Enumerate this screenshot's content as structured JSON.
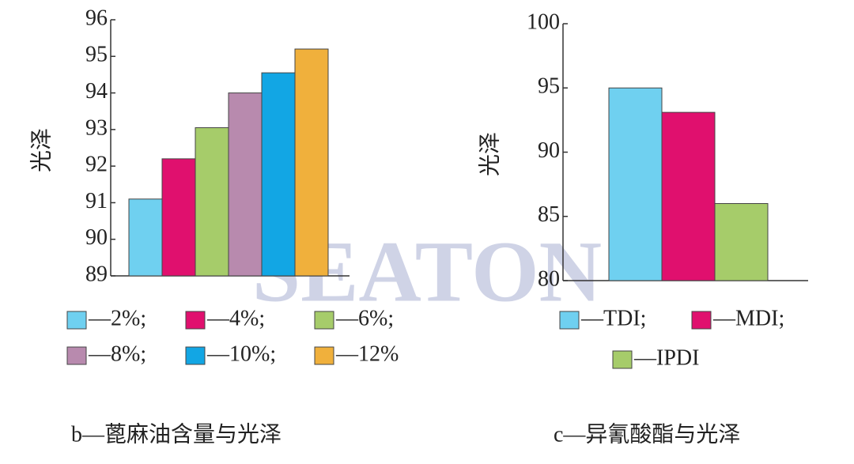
{
  "watermark": "SEATON",
  "chart_data": [
    {
      "type": "bar",
      "caption": "b—蓖麻油含量与光泽",
      "y_label": "光泽",
      "categories": [
        "—2%;",
        "—4%;",
        "—6%;",
        "—8%;",
        "—10%;",
        "—12%"
      ],
      "values": [
        91.1,
        92.2,
        93.05,
        94.0,
        94.55,
        95.2
      ],
      "colors": [
        "#6fd0f0",
        "#e0106e",
        "#a6cc6a",
        "#b88aae",
        "#12a6e4",
        "#f0b03c"
      ],
      "ylim": [
        89,
        96
      ],
      "yticks": [
        89,
        90,
        91,
        92,
        93,
        94,
        95,
        96
      ]
    },
    {
      "type": "bar",
      "caption": "c—异氰酸酯与光泽",
      "y_label": "光泽",
      "categories": [
        "—TDI;",
        "—MDI;",
        "—IPDI"
      ],
      "values": [
        95,
        93.1,
        86
      ],
      "colors": [
        "#6fd0f0",
        "#e0106e",
        "#a6cc6a"
      ],
      "ylim": [
        80,
        100
      ],
      "yticks": [
        80,
        85,
        90,
        95,
        100
      ]
    }
  ]
}
